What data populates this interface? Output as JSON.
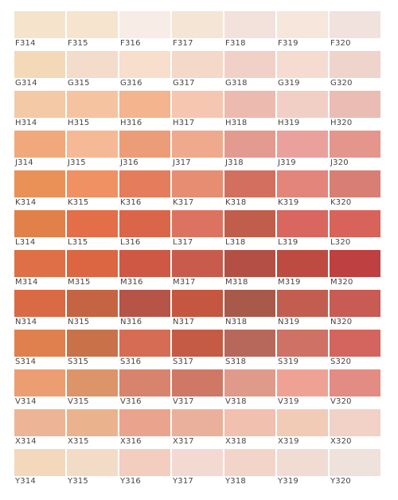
{
  "palette": {
    "rows": [
      {
        "row": "F",
        "swatches": [
          {
            "code": "F314",
            "color": "#F5E3CC"
          },
          {
            "code": "F315",
            "color": "#F6E4CF"
          },
          {
            "code": "F316",
            "color": "#F7ECE6"
          },
          {
            "code": "F317",
            "color": "#F5E5D5"
          },
          {
            "code": "F318",
            "color": "#F3E1DB"
          },
          {
            "code": "F319",
            "color": "#F7E6DB"
          },
          {
            "code": "F320",
            "color": "#F1E2DD"
          }
        ]
      },
      {
        "row": "G",
        "swatches": [
          {
            "code": "G314",
            "color": "#F4D9B9"
          },
          {
            "code": "G315",
            "color": "#F3DCC9"
          },
          {
            "code": "G316",
            "color": "#F7DFCC"
          },
          {
            "code": "G317",
            "color": "#F4D8C8"
          },
          {
            "code": "G318",
            "color": "#F1D1C7"
          },
          {
            "code": "G319",
            "color": "#F6DBD0"
          },
          {
            "code": "G320",
            "color": "#EFD4CC"
          }
        ]
      },
      {
        "row": "H",
        "swatches": [
          {
            "code": "H314",
            "color": "#F4C9A6"
          },
          {
            "code": "H315",
            "color": "#F6C3A1"
          },
          {
            "code": "H316",
            "color": "#F4B48E"
          },
          {
            "code": "H317",
            "color": "#F7C6B0"
          },
          {
            "code": "H318",
            "color": "#EDBAB0"
          },
          {
            "code": "H319",
            "color": "#F2CFC5"
          },
          {
            "code": "H320",
            "color": "#EABCB3"
          }
        ]
      },
      {
        "row": "J",
        "swatches": [
          {
            "code": "J314",
            "color": "#F1A97B"
          },
          {
            "code": "J315",
            "color": "#F5B995"
          },
          {
            "code": "J316",
            "color": "#EC9C77"
          },
          {
            "code": "J317",
            "color": "#EFAA8E"
          },
          {
            "code": "J318",
            "color": "#E29B8E"
          },
          {
            "code": "J319",
            "color": "#EBA19B"
          },
          {
            "code": "J320",
            "color": "#E4968D"
          }
        ]
      },
      {
        "row": "K",
        "swatches": [
          {
            "code": "K314",
            "color": "#EA9158"
          },
          {
            "code": "K315",
            "color": "#EF9163"
          },
          {
            "code": "K316",
            "color": "#E57D5C"
          },
          {
            "code": "K317",
            "color": "#E68D72"
          },
          {
            "code": "K318",
            "color": "#D26F5E"
          },
          {
            "code": "K319",
            "color": "#E3857B"
          },
          {
            "code": "K320",
            "color": "#D97E74"
          }
        ]
      },
      {
        "row": "L",
        "swatches": [
          {
            "code": "L314",
            "color": "#E2804A"
          },
          {
            "code": "L315",
            "color": "#E36E47"
          },
          {
            "code": "L316",
            "color": "#DB6548"
          },
          {
            "code": "L317",
            "color": "#DC7360"
          },
          {
            "code": "L318",
            "color": "#C05E4B"
          },
          {
            "code": "L319",
            "color": "#D9665F"
          },
          {
            "code": "L320",
            "color": "#D7635A"
          }
        ]
      },
      {
        "row": "M",
        "swatches": [
          {
            "code": "M314",
            "color": "#DE6F46"
          },
          {
            "code": "M315",
            "color": "#DC6542"
          },
          {
            "code": "M316",
            "color": "#CF5845"
          },
          {
            "code": "M317",
            "color": "#C95B4C"
          },
          {
            "code": "M318",
            "color": "#B44F45"
          },
          {
            "code": "M319",
            "color": "#BD4B42"
          },
          {
            "code": "M320",
            "color": "#BE4040"
          }
        ]
      },
      {
        "row": "N",
        "swatches": [
          {
            "code": "N314",
            "color": "#DA6A44"
          },
          {
            "code": "N315",
            "color": "#C56442"
          },
          {
            "code": "N316",
            "color": "#B65448"
          },
          {
            "code": "N317",
            "color": "#C5563F"
          },
          {
            "code": "N318",
            "color": "#A9594A"
          },
          {
            "code": "N319",
            "color": "#C25D4F"
          },
          {
            "code": "N320",
            "color": "#C85B54"
          }
        ]
      },
      {
        "row": "S",
        "swatches": [
          {
            "code": "S314",
            "color": "#E0804F"
          },
          {
            "code": "S315",
            "color": "#C97249"
          },
          {
            "code": "S316",
            "color": "#D76C55"
          },
          {
            "code": "S317",
            "color": "#C55A45"
          },
          {
            "code": "S318",
            "color": "#B8685A"
          },
          {
            "code": "S319",
            "color": "#CF7165"
          },
          {
            "code": "S320",
            "color": "#D4655E"
          }
        ]
      },
      {
        "row": "V",
        "swatches": [
          {
            "code": "V314",
            "color": "#EC9E72"
          },
          {
            "code": "V315",
            "color": "#DE9469"
          },
          {
            "code": "V316",
            "color": "#D8836C"
          },
          {
            "code": "V317",
            "color": "#CF7865"
          },
          {
            "code": "V318",
            "color": "#E09A8A"
          },
          {
            "code": "V319",
            "color": "#EFA294"
          },
          {
            "code": "V320",
            "color": "#E38C83"
          }
        ]
      },
      {
        "row": "X",
        "swatches": [
          {
            "code": "X314",
            "color": "#EDB595"
          },
          {
            "code": "X315",
            "color": "#EBB38D"
          },
          {
            "code": "X316",
            "color": "#EAA48E"
          },
          {
            "code": "X317",
            "color": "#EAB09C"
          },
          {
            "code": "X318",
            "color": "#F1C0AE"
          },
          {
            "code": "X319",
            "color": "#F2CBB7"
          },
          {
            "code": "X320",
            "color": "#F2D1C6"
          }
        ]
      },
      {
        "row": "Y",
        "swatches": [
          {
            "code": "Y314",
            "color": "#F4D8BB"
          },
          {
            "code": "Y315",
            "color": "#F3DCC6"
          },
          {
            "code": "Y316",
            "color": "#F3CDBE"
          },
          {
            "code": "Y317",
            "color": "#F2DAD2"
          },
          {
            "code": "Y318",
            "color": "#F3D4C9"
          },
          {
            "code": "Y319",
            "color": "#F1DCD3"
          },
          {
            "code": "Y320",
            "color": "#EFE1DB"
          }
        ]
      }
    ]
  }
}
